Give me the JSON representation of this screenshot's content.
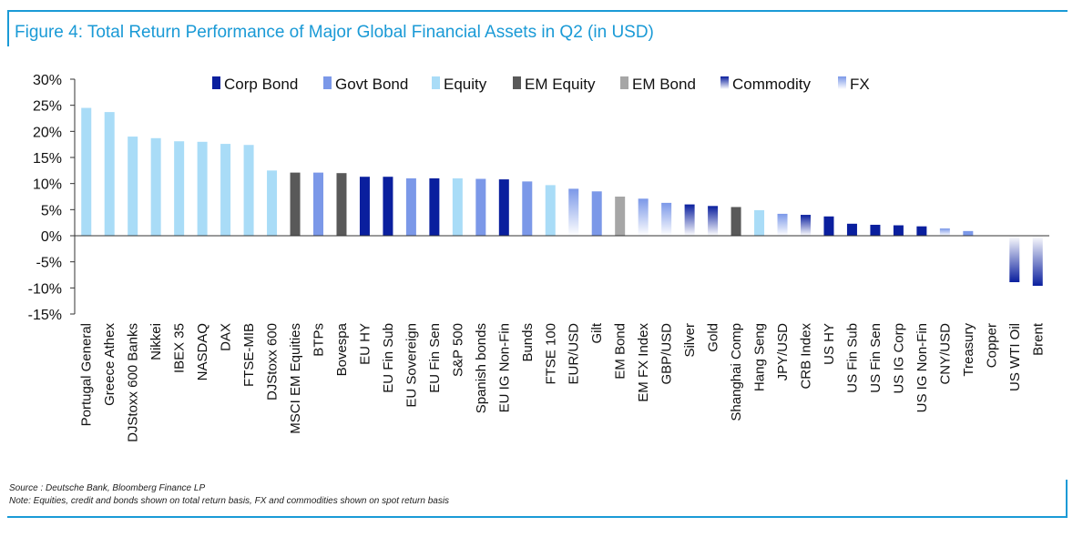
{
  "title": "Figure 4: Total Return Performance of Major Global Financial Assets in Q2 (in USD)",
  "source": "Source : Deutsche Bank, Bloomberg Finance LP",
  "note": "Note: Equities, credit and bonds shown on total return basis, FX and commodities shown on spot return basis",
  "colors": {
    "Corp Bond": "#0a1f9e",
    "Govt Bond": "#7b98e8",
    "Equity": "#a9dcf7",
    "EM Equity": "#595959",
    "EM Bond": "#a6a6a6",
    "Commodity": [
      "#0a1f9e",
      "#ffffff"
    ],
    "FX": [
      "#7b98e8",
      "#ffffff"
    ]
  },
  "chart_data": {
    "type": "bar",
    "ylim": [
      -15,
      30
    ],
    "yticks": [
      -15,
      -10,
      -5,
      0,
      5,
      10,
      15,
      20,
      25,
      30
    ],
    "ytick_labels": [
      "-15%",
      "-10%",
      "-5%",
      "0%",
      "5%",
      "10%",
      "15%",
      "20%",
      "25%",
      "30%"
    ],
    "legend": [
      "Corp Bond",
      "Govt Bond",
      "Equity",
      "EM Equity",
      "EM Bond",
      "Commodity",
      "FX"
    ],
    "legend_position": "top",
    "categories": [
      "Portugal General",
      "Greece Athex",
      "DJStoxx 600 Banks",
      "Nikkei",
      "IBEX 35",
      "NASDAQ",
      "DAX",
      "FTSE-MIB",
      "DJStoxx 600",
      "MSCI EM Equities",
      "BTPs",
      "Bovespa",
      "EU HY",
      "EU Fin Sub",
      "EU Sovereign",
      "EU Fin Sen",
      "S&P 500",
      "Spanish bonds",
      "EU IG Non-Fin",
      "Bunds",
      "FTSE 100",
      "EUR/USD",
      "Gilt",
      "EM Bond",
      "EM FX Index",
      "GBP/USD",
      "Silver",
      "Gold",
      "Shanghai Comp",
      "Hang Seng",
      "JPY/USD",
      "CRB Index",
      "US HY",
      "US Fin Sub",
      "US Fin Sen",
      "US IG Corp",
      "US IG Non-Fin",
      "CNY/USD",
      "Treasury",
      "Copper",
      "US WTI Oil",
      "Brent"
    ],
    "values": [
      24.5,
      23.7,
      19.0,
      18.7,
      18.1,
      18.0,
      17.6,
      17.4,
      12.5,
      12.1,
      12.1,
      12.0,
      11.3,
      11.3,
      11.0,
      11.0,
      11.0,
      10.9,
      10.8,
      10.4,
      9.7,
      9.0,
      8.5,
      7.5,
      7.1,
      6.3,
      6.0,
      5.7,
      5.5,
      4.9,
      4.2,
      4.0,
      3.7,
      2.3,
      2.1,
      2.0,
      1.8,
      1.4,
      0.9,
      0.0,
      -8.9,
      -9.6
    ],
    "asset_class": [
      "Equity",
      "Equity",
      "Equity",
      "Equity",
      "Equity",
      "Equity",
      "Equity",
      "Equity",
      "Equity",
      "EM Equity",
      "Govt Bond",
      "EM Equity",
      "Corp Bond",
      "Corp Bond",
      "Govt Bond",
      "Corp Bond",
      "Equity",
      "Govt Bond",
      "Corp Bond",
      "Govt Bond",
      "Equity",
      "FX",
      "Govt Bond",
      "EM Bond",
      "FX",
      "FX",
      "Commodity",
      "Commodity",
      "EM Equity",
      "Equity",
      "FX",
      "Commodity",
      "Corp Bond",
      "Corp Bond",
      "Corp Bond",
      "Corp Bond",
      "Corp Bond",
      "FX",
      "Govt Bond",
      "Commodity",
      "Commodity",
      "Commodity"
    ]
  }
}
